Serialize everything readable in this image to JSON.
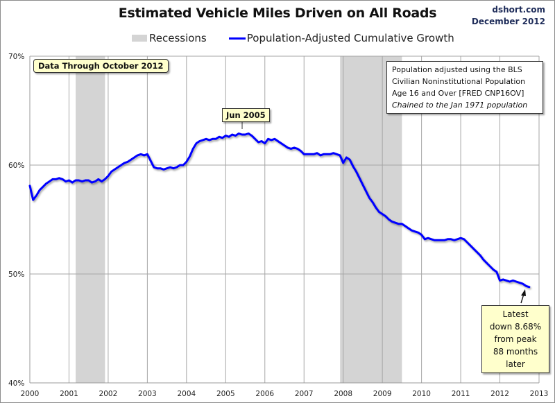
{
  "header": {
    "title": "Estimated Vehicle Miles Driven on All Roads",
    "source_line1": "dshort.com",
    "source_line2": "December 2012"
  },
  "legend": {
    "recessions": "Recessions",
    "series": "Population-Adjusted Cumulative Growth"
  },
  "annotations": {
    "data_through": "Data Through October 2012",
    "peak_label": "Jun 2005",
    "note_lines": [
      "Population adjusted using the BLS",
      "Civilian Noninstitutional Population",
      "Age 16 and Over  [FRED CNP16OV]",
      "Chained to the Jan 1971 population"
    ],
    "latest_lines": [
      "Latest",
      "down 8.68%",
      "from peak",
      "88 months later"
    ]
  },
  "colors": {
    "line": "#0000ff",
    "recession": "#d4d4d4",
    "grid": "#a6a6a6",
    "callout_bg": "#ffffcc"
  },
  "chart_data": {
    "type": "line",
    "title": "Estimated Vehicle Miles Driven on All Roads",
    "xlabel": "",
    "ylabel": "",
    "xlim": [
      2000,
      2013
    ],
    "ylim": [
      40,
      70
    ],
    "x_ticks": [
      "2000",
      "2001",
      "2002",
      "2003",
      "2004",
      "2005",
      "2006",
      "2007",
      "2008",
      "2009",
      "2010",
      "2011",
      "2012",
      "2013"
    ],
    "y_ticks": [
      "40%",
      "50%",
      "60%",
      "70%"
    ],
    "y_tick_values": [
      40,
      50,
      60,
      70
    ],
    "grid": true,
    "legend_position": "top-center",
    "recessions": [
      {
        "start": 2001.17,
        "end": 2001.92
      },
      {
        "start": 2007.92,
        "end": 2009.5
      }
    ],
    "series": [
      {
        "name": "Population-Adjusted Cumulative Growth",
        "start": "2000-01",
        "frequency": "monthly",
        "values": [
          58.1,
          56.8,
          57.2,
          57.7,
          58.0,
          58.3,
          58.5,
          58.7,
          58.7,
          58.8,
          58.7,
          58.5,
          58.6,
          58.4,
          58.6,
          58.6,
          58.5,
          58.6,
          58.6,
          58.4,
          58.5,
          58.7,
          58.5,
          58.7,
          59.0,
          59.4,
          59.6,
          59.8,
          60.0,
          60.2,
          60.3,
          60.5,
          60.7,
          60.9,
          61.0,
          60.9,
          61.0,
          60.4,
          59.8,
          59.7,
          59.7,
          59.6,
          59.7,
          59.8,
          59.7,
          59.8,
          60.0,
          60.0,
          60.3,
          60.8,
          61.5,
          62.0,
          62.2,
          62.3,
          62.4,
          62.3,
          62.4,
          62.4,
          62.6,
          62.5,
          62.7,
          62.6,
          62.8,
          62.7,
          62.9,
          62.8,
          62.8,
          62.9,
          62.7,
          62.4,
          62.1,
          62.2,
          62.0,
          62.4,
          62.3,
          62.4,
          62.2,
          62.0,
          61.8,
          61.6,
          61.5,
          61.6,
          61.5,
          61.3,
          61.0,
          61.0,
          61.0,
          61.0,
          61.1,
          60.9,
          61.0,
          61.0,
          61.0,
          61.1,
          61.0,
          60.9,
          60.2,
          60.7,
          60.5,
          59.9,
          59.4,
          58.8,
          58.2,
          57.6,
          57.0,
          56.6,
          56.1,
          55.7,
          55.5,
          55.3,
          55.0,
          54.8,
          54.7,
          54.6,
          54.6,
          54.4,
          54.2,
          54.0,
          53.9,
          53.8,
          53.6,
          53.2,
          53.3,
          53.2,
          53.1,
          53.1,
          53.1,
          53.1,
          53.2,
          53.2,
          53.1,
          53.2,
          53.3,
          53.2,
          52.9,
          52.6,
          52.3,
          52.0,
          51.7,
          51.3,
          51.0,
          50.7,
          50.4,
          50.2,
          49.4,
          49.5,
          49.4,
          49.3,
          49.4,
          49.3,
          49.2,
          49.1,
          48.9,
          48.8
        ]
      }
    ],
    "annotations": [
      {
        "label": "Jun 2005",
        "x": 2005.42,
        "note": "peak"
      },
      {
        "label": "Latest down 8.68% from peak 88 months later",
        "x": 2012.75
      }
    ]
  }
}
